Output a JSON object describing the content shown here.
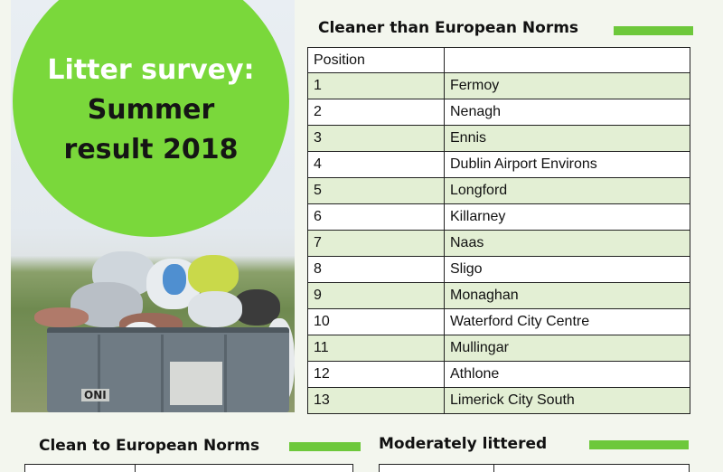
{
  "badge": {
    "line1": "Litter survey:",
    "line2": "Summer",
    "line3": "result 2018"
  },
  "bin_label": "ONI",
  "cleaner_section": {
    "heading": "Cleaner than European Norms",
    "column_header": "Position",
    "rows": [
      {
        "position": "1",
        "town": "Fermoy"
      },
      {
        "position": "2",
        "town": "Nenagh"
      },
      {
        "position": "3",
        "town": "Ennis"
      },
      {
        "position": "4",
        "town": "Dublin Airport Environs"
      },
      {
        "position": "5",
        "town": "Longford"
      },
      {
        "position": "6",
        "town": "Killarney"
      },
      {
        "position": "7",
        "town": "Naas"
      },
      {
        "position": "8",
        "town": "Sligo"
      },
      {
        "position": "9",
        "town": "Monaghan"
      },
      {
        "position": "10",
        "town": "Waterford City Centre"
      },
      {
        "position": "11",
        "town": "Mullingar"
      },
      {
        "position": "12",
        "town": "Athlone"
      },
      {
        "position": "13",
        "town": "Limerick City South"
      }
    ]
  },
  "clean_section": {
    "heading": "Clean  to European Norms"
  },
  "moderate_section": {
    "heading": "Moderately littered"
  },
  "colors": {
    "accent_green": "#6dc83b",
    "badge_green": "#7ad83b",
    "row_tint": "#e3efd4"
  }
}
